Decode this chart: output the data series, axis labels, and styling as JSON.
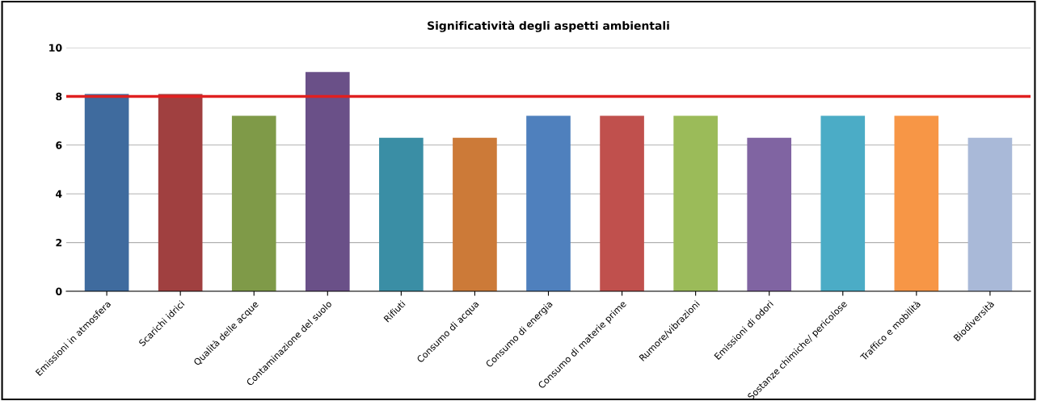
{
  "chart_data": {
    "type": "bar",
    "title": "Significatività degli aspetti ambientali",
    "categories": [
      "Emissioni in atmosfera",
      "Scarichi idrici",
      "Qualità delle acque",
      "Contaminazione del suolo",
      "Rifiuti",
      "Consumo di acqua",
      "Consumo di energia",
      "Consumo di materie prime",
      "Rumore/vibrazioni",
      "Emissioni di odori",
      "Sostanze chimiche/ pericolose",
      "Traffico e mobilità",
      "Biodiversità"
    ],
    "values": [
      8.1,
      8.1,
      7.2,
      9,
      6.3,
      6.3,
      7.2,
      7.2,
      7.2,
      6.3,
      7.2,
      7.2,
      6.3
    ],
    "colors": [
      "#3f6b9e",
      "#a04040",
      "#7f9a48",
      "#6a5088",
      "#3a8ea5",
      "#cc7a38",
      "#4f80bd",
      "#c0504d",
      "#9bbb59",
      "#8064a2",
      "#4bacc6",
      "#f79646",
      "#a9b9d8"
    ],
    "ylim": [
      0,
      10
    ],
    "yticks": [
      0,
      2,
      4,
      6,
      8,
      10
    ],
    "grid": "y",
    "ref_lines": [
      {
        "axis": "y",
        "value": 8,
        "color": "#e02020",
        "line_style": "solid"
      }
    ]
  }
}
